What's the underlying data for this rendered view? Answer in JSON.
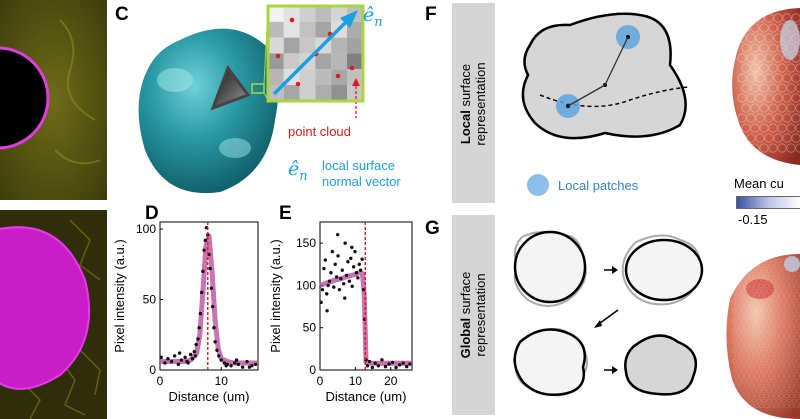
{
  "panels": {
    "C": "C",
    "D": "D",
    "E": "E",
    "F": "F",
    "G": "G"
  },
  "panel_c": {
    "normal_symbol": "ê",
    "normal_sub": "n",
    "point_cloud_label": "point cloud",
    "normal_caption_line1": "local surface",
    "normal_caption_line2": "normal vector"
  },
  "panel_f": {
    "sidebar_bold": "Local",
    "sidebar_rest": " surface",
    "sidebar_line2": "representation",
    "legend_label": "Local patches",
    "colorbar_title": "Mean cu",
    "colorbar_min": "-0.15"
  },
  "panel_g": {
    "sidebar_bold": "Global",
    "sidebar_rest": " surface",
    "sidebar_line2": "representation"
  },
  "colors": {
    "teal": "#2a9aa6",
    "magenta": "#d91ad9",
    "yellow_img": "#5c5c12",
    "blue": "#1a9fe0",
    "red": "#e01b1b",
    "fit": "#c05aa8",
    "frame": "#a8d640"
  },
  "chart_data": [
    {
      "type": "line",
      "panel": "D",
      "xlabel": "Distance (um)",
      "ylabel": "Pixel intensity (a.u.)",
      "xlim": [
        0,
        16
      ],
      "ylim": [
        0,
        105
      ],
      "xticks": [
        0,
        10
      ],
      "yticks": [
        0,
        50,
        100
      ],
      "marker_x": 7.8,
      "fit": {
        "x": [
          0,
          2,
          4,
          5,
          6,
          6.5,
          7,
          7.5,
          8,
          8.5,
          9,
          9.5,
          10,
          11,
          12,
          14,
          16
        ],
        "y": [
          6,
          6,
          6,
          7,
          12,
          25,
          55,
          88,
          95,
          70,
          35,
          15,
          8,
          6,
          5,
          5,
          5
        ]
      },
      "points": {
        "x": [
          0.2,
          0.8,
          1.3,
          1.9,
          2.4,
          3.0,
          3.5,
          4.1,
          4.6,
          5.0,
          5.3,
          5.6,
          5.9,
          6.2,
          6.4,
          6.6,
          6.8,
          7.0,
          7.2,
          7.4,
          7.6,
          7.8,
          8.0,
          8.2,
          8.4,
          8.6,
          8.8,
          9.0,
          9.3,
          9.6,
          10.0,
          10.5,
          11.0,
          11.6,
          12.2,
          12.8,
          13.5,
          14.2,
          15.0,
          15.6,
          3.2,
          4.4,
          5.8,
          10.8,
          12.5,
          14.6
        ],
        "y": [
          9,
          5,
          8,
          6,
          10,
          4,
          7,
          9,
          5,
          11,
          8,
          13,
          18,
          22,
          30,
          40,
          55,
          70,
          85,
          92,
          101,
          96,
          82,
          72,
          58,
          45,
          30,
          20,
          14,
          10,
          7,
          5,
          4,
          3,
          5,
          4,
          2,
          6,
          3,
          4,
          12,
          6,
          10,
          3,
          7,
          2
        ]
      }
    },
    {
      "type": "line",
      "panel": "E",
      "xlabel": "Distance (um)",
      "ylabel": "Pixel intensity (a.u.)",
      "xlim": [
        0,
        26
      ],
      "ylim": [
        0,
        175
      ],
      "xticks": [
        0,
        10,
        20
      ],
      "yticks": [
        0,
        50,
        100,
        150
      ],
      "marker_x": 12.8,
      "fit": {
        "x": [
          0,
          2,
          4,
          6,
          8,
          10,
          11,
          12,
          12.5,
          13,
          14,
          16,
          20,
          26
        ],
        "y": [
          100,
          103,
          106,
          108,
          111,
          113,
          115,
          114,
          90,
          10,
          8,
          8,
          8,
          8
        ]
      },
      "points": {
        "x": [
          0.3,
          0.7,
          1.1,
          1.5,
          1.9,
          2.3,
          2.7,
          3.1,
          3.5,
          3.9,
          4.3,
          4.7,
          5.1,
          5.5,
          5.9,
          6.3,
          6.7,
          7.1,
          7.5,
          7.9,
          8.3,
          8.7,
          9.1,
          9.5,
          9.9,
          10.3,
          10.7,
          11.1,
          11.5,
          11.9,
          12.3,
          12.6,
          13.0,
          13.4,
          14.0,
          14.8,
          15.6,
          16.5,
          17.5,
          18.5,
          19.5,
          20.5,
          21.5,
          22.5,
          23.5,
          24.5,
          25.4,
          5.0,
          9.0,
          2.0,
          7.0
        ],
        "y": [
          80,
          95,
          120,
          130,
          90,
          100,
          105,
          115,
          140,
          98,
          125,
          110,
          135,
          95,
          108,
          118,
          102,
          150,
          112,
          128,
          105,
          132,
          99,
          122,
          140,
          115,
          109,
          125,
          118,
          131,
          95,
          60,
          12,
          5,
          10,
          3,
          8,
          5,
          12,
          4,
          7,
          9,
          3,
          6,
          8,
          4,
          7,
          160,
          145,
          70,
          85
        ]
      }
    }
  ]
}
